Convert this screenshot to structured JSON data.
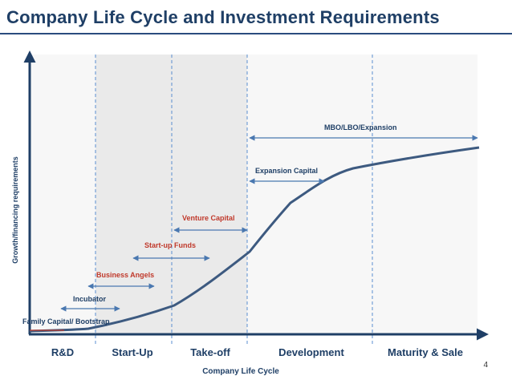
{
  "title": "Company Life Cycle and Investment Requirements",
  "y_axis_label": "Growth/financing requirements",
  "x_axis_label": "Company Life Cycle",
  "page_number": "4",
  "phases": [
    "R&D",
    "Start-Up",
    "Take-off",
    "Development",
    "Maturity & Sale"
  ],
  "financing_stages": [
    {
      "label": "Family Capital/  Bootstrap",
      "color": "#1f3f66"
    },
    {
      "label": "Incubator",
      "color": "#1f3f66"
    },
    {
      "label": "Business Angels",
      "color": "#c0392b"
    },
    {
      "label": "Start-up Funds",
      "color": "#c0392b"
    },
    {
      "label": "Venture Capital",
      "color": "#c0392b"
    },
    {
      "label": "Expansion Capital",
      "color": "#1f3f66"
    },
    {
      "label": "MBO/LBO/Expansion",
      "color": "#1f3f66"
    }
  ],
  "colors": {
    "title": "#1f3f66",
    "curve": "#3d5a80",
    "arrow": "#4a78b0",
    "divider": "#5b8fd0",
    "highlight_band": "#eaeaea",
    "light_band": "#f7f7f7"
  }
}
